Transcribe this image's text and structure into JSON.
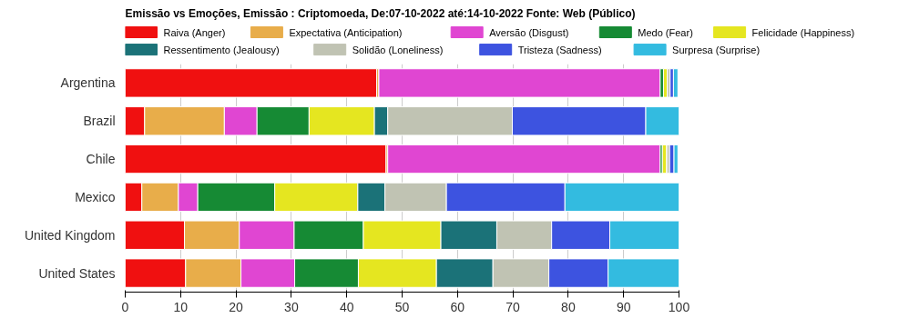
{
  "chart_data": {
    "type": "bar",
    "orientation": "horizontal",
    "stacked": true,
    "title": "Emissão vs Emoções, Emissão : Criptomoeda, De:07-10-2022 até:14-10-2022 Fonte: Web (Público)",
    "categories": [
      "Argentina",
      "Brazil",
      "Chile",
      "Mexico",
      "United Kingdom",
      "United States"
    ],
    "xlim": [
      0,
      100
    ],
    "xticks": [
      0,
      10,
      20,
      30,
      40,
      50,
      60,
      70,
      80,
      90,
      100
    ],
    "grid": "x",
    "legend": "top",
    "series": [
      {
        "name": "Raiva (Anger)",
        "color": "#f01010",
        "values": [
          45.4,
          3.5,
          47.1,
          3.0,
          10.7,
          10.9
        ]
      },
      {
        "name": "Expectativa (Anticipation)",
        "color": "#e8ad4a",
        "values": [
          0.4,
          14.4,
          0.3,
          6.6,
          9.9,
          10.0
        ]
      },
      {
        "name": "Aversão (Disgust)",
        "color": "#e046d2",
        "values": [
          50.8,
          5.9,
          49.2,
          3.5,
          9.9,
          9.7
        ]
      },
      {
        "name": "Medo (Fear)",
        "color": "#168a34",
        "values": [
          0.6,
          9.4,
          0.4,
          13.9,
          12.5,
          11.5
        ]
      },
      {
        "name": "Felicidade (Happiness)",
        "color": "#e5e620",
        "values": [
          0.7,
          11.8,
          0.8,
          15.0,
          14.0,
          14.1
        ]
      },
      {
        "name": "Ressentimento (Jealousy)",
        "color": "#1b7278",
        "values": [
          null,
          2.4,
          null,
          4.9,
          10.1,
          10.2
        ]
      },
      {
        "name": "Solidão (Loneliness)",
        "color": "#c0c3b3",
        "values": [
          0.5,
          22.5,
          0.5,
          11.1,
          9.9,
          10.1
        ]
      },
      {
        "name": "Tristeza (Sadness)",
        "color": "#3d53e0",
        "values": [
          0.6,
          24.1,
          0.8,
          21.4,
          10.5,
          10.7
        ]
      },
      {
        "name": "Surpresa (Surprise)",
        "color": "#33bbe0",
        "values": [
          0.8,
          6.0,
          0.7,
          20.6,
          12.5,
          12.8
        ]
      }
    ]
  }
}
